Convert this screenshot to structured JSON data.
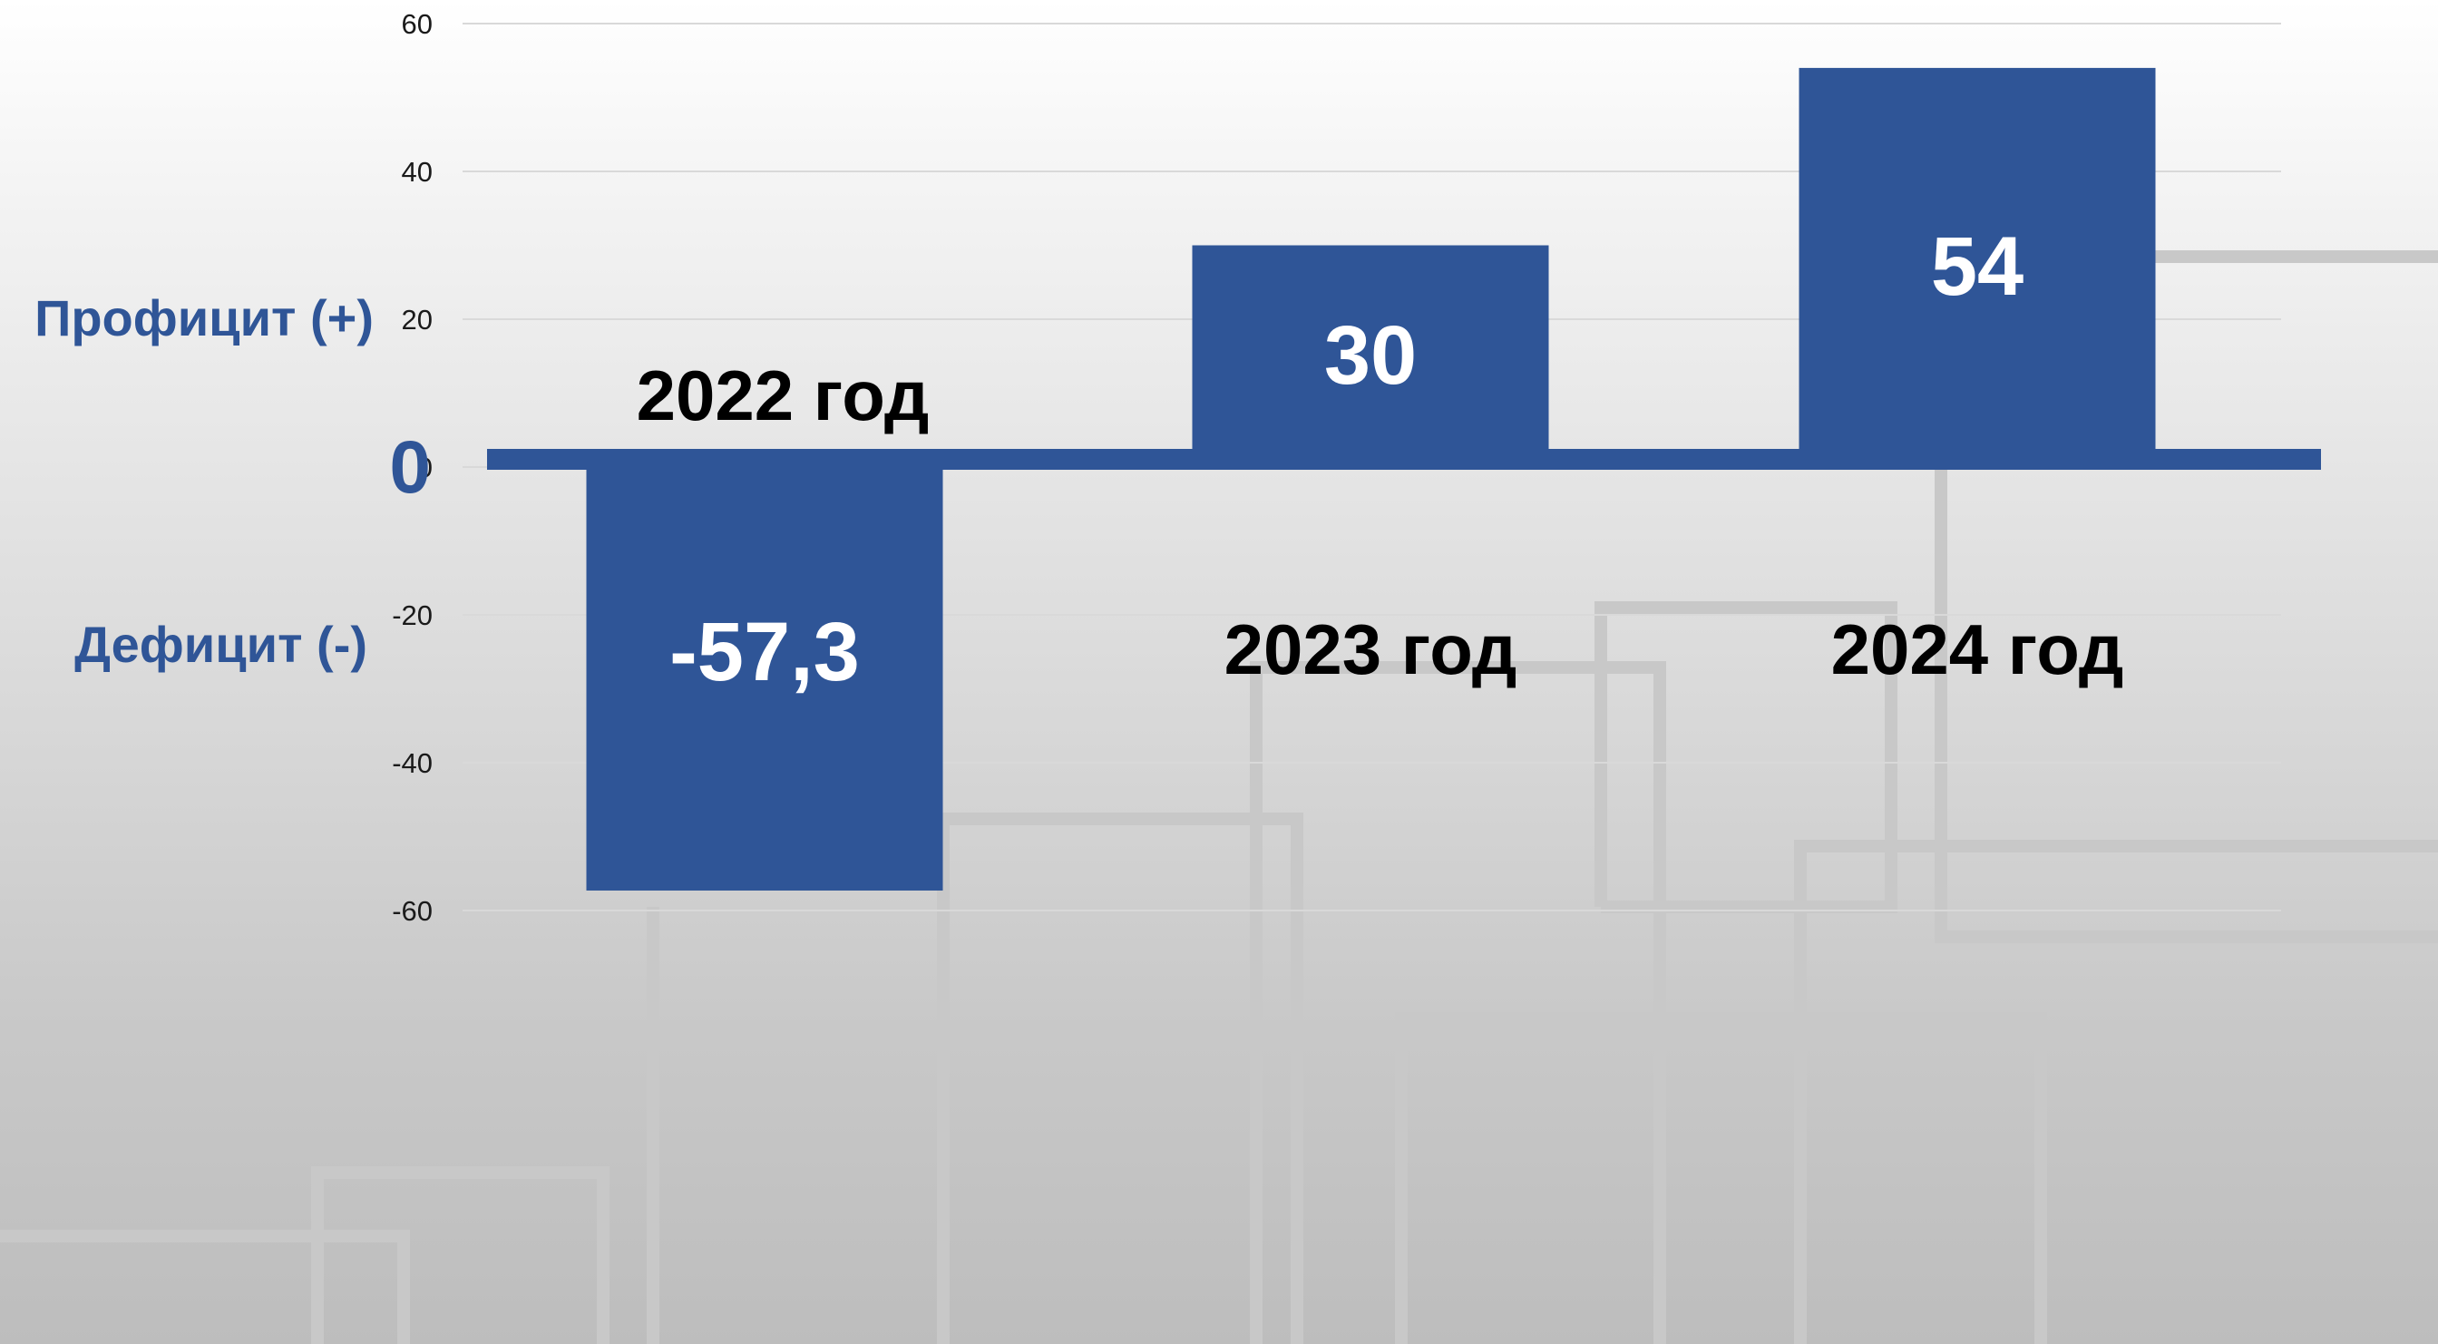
{
  "chart_data": {
    "type": "bar",
    "categories": [
      "2022 год",
      "2023 год",
      "2024 год"
    ],
    "values": [
      -57.3,
      30,
      54
    ],
    "value_labels": [
      "-57,3",
      "30",
      "54"
    ],
    "ylim": [
      -60,
      60
    ],
    "yticks": [
      60,
      40,
      20,
      0,
      -20,
      -40,
      -60
    ],
    "grid": true,
    "bar_color": "#2f5597",
    "zero_label": "0",
    "surplus_label": "Профицит (+)",
    "deficit_label": "Дефицит (-)"
  }
}
